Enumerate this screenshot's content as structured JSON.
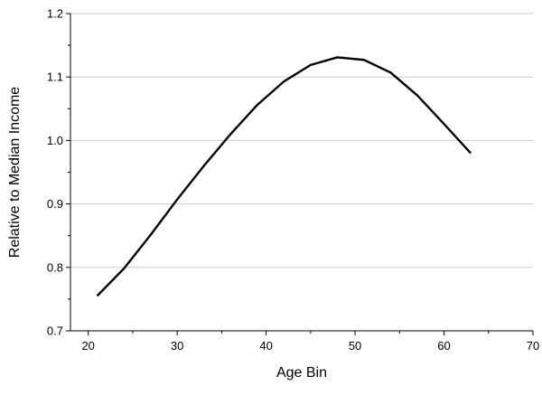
{
  "chart_data": {
    "type": "line",
    "title": "",
    "xlabel": "Age Bin",
    "ylabel": "Relative to Median Income",
    "xlim": [
      18,
      70
    ],
    "ylim": [
      0.7,
      1.2
    ],
    "x_ticks": [
      20,
      30,
      40,
      50,
      60,
      70
    ],
    "y_ticks": [
      0.7,
      0.8,
      0.9,
      1.0,
      1.1,
      1.2
    ],
    "x_tick_labels": [
      "20",
      "30",
      "40",
      "50",
      "60",
      "70"
    ],
    "y_tick_labels": [
      "0.7",
      "0.8",
      "0.9",
      "1.0",
      "1.1",
      "1.2"
    ],
    "grid": "horizontal",
    "legend": "none",
    "line_color": "#000000",
    "grid_color": "#cccccc",
    "series": [
      {
        "x": [
          21,
          24,
          27,
          30,
          33,
          36,
          39,
          42,
          45,
          48,
          51,
          54,
          57,
          60,
          63
        ],
        "y": [
          0.755,
          0.798,
          0.851,
          0.907,
          0.96,
          1.01,
          1.056,
          1.093,
          1.119,
          1.131,
          1.127,
          1.107,
          1.071,
          1.026,
          0.98
        ]
      }
    ]
  }
}
